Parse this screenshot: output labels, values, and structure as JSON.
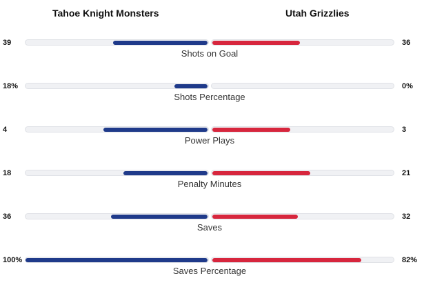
{
  "teams": {
    "home": "Tahoe Knight Monsters",
    "away": "Utah Grizzlies"
  },
  "colors": {
    "home_bar": "#1f3a8a",
    "away_bar": "#d7263d",
    "track": "#f0f1f4"
  },
  "stats": [
    {
      "label": "Shots on Goal",
      "home": "39",
      "away": "36",
      "home_fraction": 0.52,
      "away_fraction": 0.48
    },
    {
      "label": "Shots Percentage",
      "home": "18%",
      "away": "0%",
      "home_fraction": 0.18,
      "away_fraction": 0.0
    },
    {
      "label": "Power Plays",
      "home": "4",
      "away": "3",
      "home_fraction": 0.571,
      "away_fraction": 0.429
    },
    {
      "label": "Penalty Minutes",
      "home": "18",
      "away": "21",
      "home_fraction": 0.462,
      "away_fraction": 0.538
    },
    {
      "label": "Saves",
      "home": "36",
      "away": "32",
      "home_fraction": 0.529,
      "away_fraction": 0.471
    },
    {
      "label": "Saves Percentage",
      "home": "100%",
      "away": "82%",
      "home_fraction": 1.0,
      "away_fraction": 0.82
    }
  ]
}
